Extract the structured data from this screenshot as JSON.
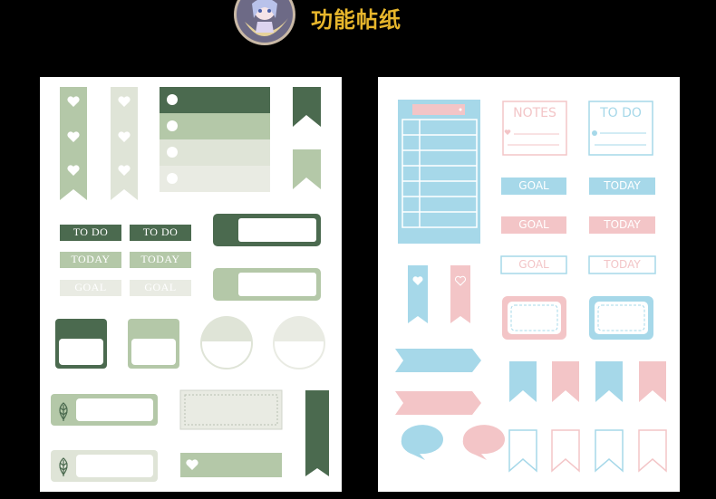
{
  "header": {
    "title": "功能帖纸"
  },
  "left_sheet": {
    "labels": {
      "todo_1": "TO DO",
      "todo_2": "TO DO",
      "today_1": "TODAY",
      "today_2": "TODAY",
      "goal_1": "GOAL",
      "goal_2": "GOAL"
    }
  },
  "right_sheet": {
    "notes_label": "NOTES",
    "todo_label": "TO DO",
    "labels": {
      "goal_blue": "GOAL",
      "today_blue": "TODAY",
      "goal_pink": "GOAL",
      "today_pink": "TODAY",
      "goal_outline": "GOAL",
      "today_outline": "TODAY"
    }
  },
  "colors": {
    "dark_green": "#4b6a4f",
    "sage": "#b4c8a8",
    "pale_sage": "#dfe4d7",
    "cream": "#e9ebe3",
    "blue": "#a6d8e9",
    "pink": "#f3c5c7",
    "title_gold": "#e7b62c",
    "background": "#000000"
  }
}
